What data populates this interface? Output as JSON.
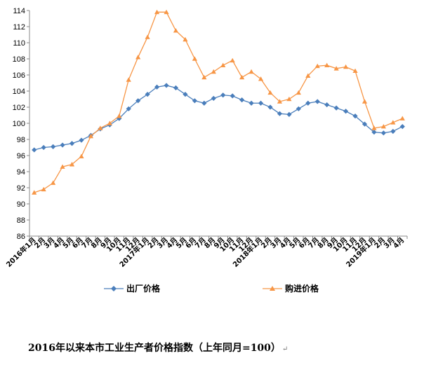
{
  "chart_data": {
    "type": "line",
    "title": "",
    "caption": "2016年以来本市工业生产者价格指数（上年同月=100）",
    "caption_mark": "↵",
    "xlabel": "",
    "ylabel": "",
    "ylim": [
      86,
      114
    ],
    "yticks": [
      86,
      88,
      90,
      92,
      94,
      96,
      98,
      100,
      102,
      104,
      106,
      108,
      110,
      112,
      114
    ],
    "grid": false,
    "legend_position": "bottom",
    "categories": [
      "2016年1月",
      "2月",
      "3月",
      "4月",
      "5月",
      "6月",
      "7月",
      "8月",
      "9月",
      "10月",
      "11月",
      "12月",
      "2017年1月",
      "2月",
      "3月",
      "4月",
      "5月",
      "6月",
      "7月",
      "8月",
      "9月",
      "10月",
      "11月",
      "12月",
      "2018年1月",
      "2月",
      "3月",
      "4月",
      "5月",
      "6月",
      "7月",
      "8月",
      "9月",
      "10月",
      "11月",
      "12月",
      "2019年1月",
      "2月",
      "3月",
      "4月"
    ],
    "series": [
      {
        "name": "出厂价格",
        "color": "#4a7ebb",
        "marker": "diamond",
        "values": [
          96.7,
          97.0,
          97.1,
          97.3,
          97.5,
          97.9,
          98.5,
          99.3,
          99.8,
          100.6,
          101.8,
          102.8,
          103.6,
          104.5,
          104.7,
          104.4,
          103.6,
          102.8,
          102.5,
          103.1,
          103.5,
          103.4,
          102.9,
          102.5,
          102.5,
          102.0,
          101.2,
          101.1,
          101.8,
          102.5,
          102.7,
          102.3,
          101.9,
          101.5,
          100.9,
          99.9,
          98.9,
          98.8,
          99.0,
          99.6
        ]
      },
      {
        "name": "购进价格",
        "color": "#f79646",
        "marker": "triangle",
        "values": [
          91.4,
          91.8,
          92.6,
          94.6,
          94.9,
          95.9,
          98.4,
          99.4,
          100.0,
          100.9,
          105.4,
          108.2,
          110.7,
          113.8,
          113.8,
          111.5,
          110.4,
          108.0,
          105.7,
          106.4,
          107.2,
          107.8,
          105.7,
          106.4,
          105.5,
          103.8,
          102.7,
          103.0,
          103.8,
          105.9,
          107.1,
          107.2,
          106.8,
          107.0,
          106.5,
          102.7,
          99.4,
          99.6,
          100.1,
          100.6
        ]
      }
    ]
  }
}
